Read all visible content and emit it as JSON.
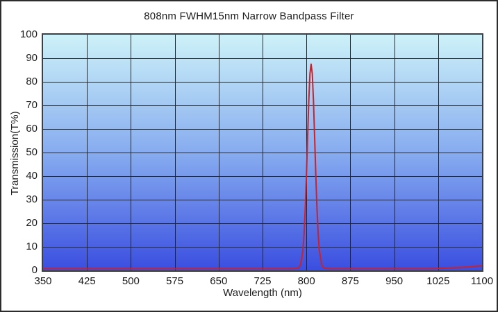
{
  "chart_data": {
    "type": "line",
    "title": "808nm FWHM15nm Narrow Bandpass Filter",
    "xlabel": "Wavelength (nm)",
    "ylabel": "Transmission(T%)",
    "xlim": [
      350,
      1100
    ],
    "ylim": [
      0,
      100
    ],
    "x_ticks": [
      350,
      425,
      500,
      575,
      650,
      725,
      800,
      875,
      950,
      1025,
      1100
    ],
    "y_ticks": [
      0,
      10,
      20,
      30,
      40,
      50,
      60,
      70,
      80,
      90,
      100
    ],
    "grid": true,
    "legend": "none",
    "annotations": {
      "peak_center_nm": 808,
      "peak_transmission_pct": 87.5,
      "fwhm_nm": 15
    },
    "series": [
      {
        "name": "Transmission",
        "color": "#c8232d",
        "points": [
          [
            350,
            0.7
          ],
          [
            400,
            0.7
          ],
          [
            450,
            0.7
          ],
          [
            500,
            0.7
          ],
          [
            550,
            0.7
          ],
          [
            600,
            0.7
          ],
          [
            650,
            0.7
          ],
          [
            700,
            0.7
          ],
          [
            750,
            0.7
          ],
          [
            775,
            0.7
          ],
          [
            782,
            0.8
          ],
          [
            786,
            0.9
          ],
          [
            790,
            2.3
          ],
          [
            794,
            8.5
          ],
          [
            796,
            15.5
          ],
          [
            798,
            26.1
          ],
          [
            800,
            40.3
          ],
          [
            802,
            56.5
          ],
          [
            804,
            72.1
          ],
          [
            806,
            83.5
          ],
          [
            808,
            87.5
          ],
          [
            810,
            83.5
          ],
          [
            812,
            72.1
          ],
          [
            814,
            56.5
          ],
          [
            816,
            40.3
          ],
          [
            818,
            26.1
          ],
          [
            820,
            15.5
          ],
          [
            822,
            8.5
          ],
          [
            826,
            2.3
          ],
          [
            830,
            0.9
          ],
          [
            834,
            0.8
          ],
          [
            840,
            0.7
          ],
          [
            875,
            0.7
          ],
          [
            925,
            0.7
          ],
          [
            975,
            0.7
          ],
          [
            1010,
            0.7
          ],
          [
            1040,
            0.9
          ],
          [
            1070,
            1.3
          ],
          [
            1100,
            1.9
          ]
        ]
      }
    ]
  },
  "colors": {
    "plot_bg_top": "#cdf2f8",
    "plot_bg_mid": "#84a9ef",
    "plot_bg_bottom": "#3a4ee0",
    "grid_line": "#22262b",
    "curve": "#c8232d",
    "frame": "#3a4046",
    "outer_border": "#2c2c2c",
    "text": "#1c1c1c"
  }
}
